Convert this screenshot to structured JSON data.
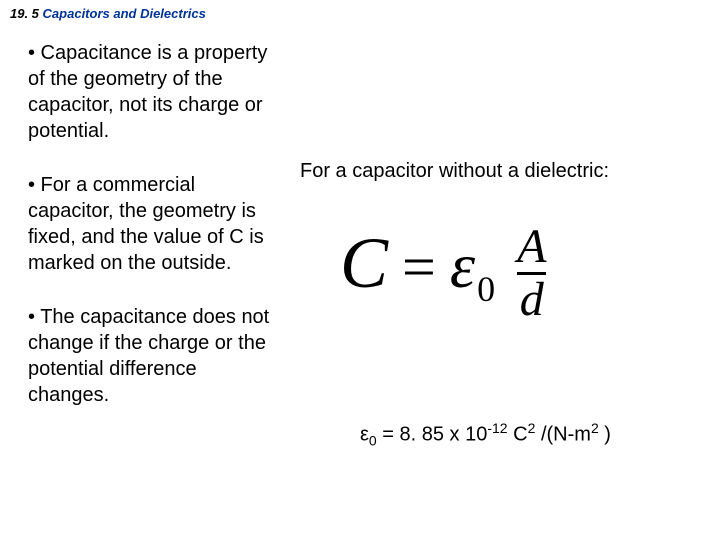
{
  "header": {
    "section_number": "19. 5",
    "section_title": "Capacitors and Dielectrics"
  },
  "bullets": {
    "b1": "• Capacitance is a property of the geometry of the capacitor, not its charge or potential.",
    "b2": "• For a commercial capacitor, the geometry is fixed, and the value of C is marked on the outside.",
    "b3": "• The capacitance does not change if the charge or the potential difference changes."
  },
  "right": {
    "caption": "For a capacitor without a dielectric:"
  },
  "formula": {
    "lhs": "C",
    "eq": "=",
    "eps": "ε",
    "sub": "0",
    "num": "A",
    "den": "d"
  },
  "constant": {
    "eps": "ε",
    "sub": "0",
    "eq_part": "  = 8. 85 x 10",
    "exp1": "-12",
    "mid": "  C",
    "exp2": "2",
    "tail1": " /(N-m",
    "exp3": "2",
    "tail2": " )"
  }
}
